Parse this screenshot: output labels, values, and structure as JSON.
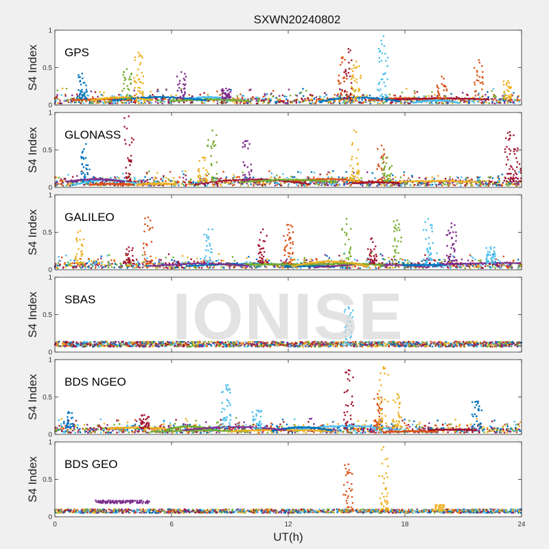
{
  "chart_data": {
    "type": "scatter",
    "title": "SXWN20240802",
    "xlabel": "UT(h)",
    "ylabel": "S4 Index",
    "xlim": [
      0,
      24
    ],
    "ylim": [
      0,
      1
    ],
    "xticks": [
      "0",
      "6",
      "12",
      "18",
      "24"
    ],
    "yticks": [
      "0",
      "0.5",
      "1"
    ],
    "watermark": "IONISE",
    "grid": false,
    "series_colors": [
      "#0072BD",
      "#D95319",
      "#EDB120",
      "#7E2F8E",
      "#77AC30",
      "#4DBEEE",
      "#A2142F"
    ],
    "panels": [
      {
        "label": "GPS",
        "bursts": [
          {
            "x": 1.4,
            "peak": 0.42,
            "color": 0
          },
          {
            "x": 3.7,
            "peak": 0.48,
            "color": 4
          },
          {
            "x": 4.3,
            "peak": 0.7,
            "color": 2
          },
          {
            "x": 6.5,
            "peak": 0.44,
            "color": 3
          },
          {
            "x": 8.8,
            "peak": 0.22,
            "color": 3
          },
          {
            "x": 14.8,
            "peak": 0.64,
            "color": 1
          },
          {
            "x": 15.1,
            "peak": 0.75,
            "color": 6
          },
          {
            "x": 15.5,
            "peak": 0.58,
            "color": 2
          },
          {
            "x": 16.9,
            "peak": 0.92,
            "color": 5
          },
          {
            "x": 19.9,
            "peak": 0.38,
            "color": 1
          },
          {
            "x": 21.8,
            "peak": 0.6,
            "color": 1
          },
          {
            "x": 23.3,
            "peak": 0.32,
            "color": 2
          }
        ]
      },
      {
        "label": "GLONASS",
        "bursts": [
          {
            "x": 1.6,
            "peak": 0.58,
            "color": 0
          },
          {
            "x": 3.8,
            "peak": 0.95,
            "color": 6
          },
          {
            "x": 8.1,
            "peak": 0.76,
            "color": 4
          },
          {
            "x": 7.6,
            "peak": 0.4,
            "color": 2
          },
          {
            "x": 9.9,
            "peak": 0.62,
            "color": 3
          },
          {
            "x": 15.4,
            "peak": 0.76,
            "color": 2
          },
          {
            "x": 16.8,
            "peak": 0.56,
            "color": 1
          },
          {
            "x": 17.1,
            "peak": 0.4,
            "color": 4
          },
          {
            "x": 23.4,
            "peak": 0.74,
            "color": 6
          },
          {
            "x": 23.8,
            "peak": 0.52,
            "color": 6
          }
        ]
      },
      {
        "label": "GALILEO",
        "bursts": [
          {
            "x": 1.3,
            "peak": 0.52,
            "color": 2
          },
          {
            "x": 4.8,
            "peak": 0.7,
            "color": 1
          },
          {
            "x": 3.8,
            "peak": 0.3,
            "color": 6
          },
          {
            "x": 7.9,
            "peak": 0.54,
            "color": 5
          },
          {
            "x": 10.7,
            "peak": 0.54,
            "color": 6
          },
          {
            "x": 12.0,
            "peak": 0.6,
            "color": 1
          },
          {
            "x": 15.0,
            "peak": 0.68,
            "color": 4
          },
          {
            "x": 16.3,
            "peak": 0.42,
            "color": 6
          },
          {
            "x": 17.6,
            "peak": 0.66,
            "color": 4
          },
          {
            "x": 19.2,
            "peak": 0.68,
            "color": 5
          },
          {
            "x": 20.4,
            "peak": 0.62,
            "color": 3
          },
          {
            "x": 22.4,
            "peak": 0.3,
            "color": 5
          }
        ]
      },
      {
        "label": "SBAS",
        "bursts": [
          {
            "x": 15.1,
            "peak": 0.6,
            "color": 5
          }
        ]
      },
      {
        "label": "BDS NGEO",
        "bursts": [
          {
            "x": 0.7,
            "peak": 0.3,
            "color": 0
          },
          {
            "x": 4.6,
            "peak": 0.26,
            "color": 6
          },
          {
            "x": 8.8,
            "peak": 0.66,
            "color": 5
          },
          {
            "x": 10.4,
            "peak": 0.32,
            "color": 5
          },
          {
            "x": 15.1,
            "peak": 0.86,
            "color": 6
          },
          {
            "x": 16.6,
            "peak": 0.54,
            "color": 1
          },
          {
            "x": 16.9,
            "peak": 0.9,
            "color": 2
          },
          {
            "x": 17.6,
            "peak": 0.54,
            "color": 2
          },
          {
            "x": 21.7,
            "peak": 0.44,
            "color": 0
          }
        ]
      },
      {
        "label": "BDS GEO",
        "bursts": [
          {
            "x": 15.1,
            "peak": 0.7,
            "color": 1
          },
          {
            "x": 16.9,
            "peak": 0.93,
            "color": 2
          },
          {
            "x": 19.8,
            "peak": 0.16,
            "color": 2
          }
        ]
      }
    ]
  }
}
